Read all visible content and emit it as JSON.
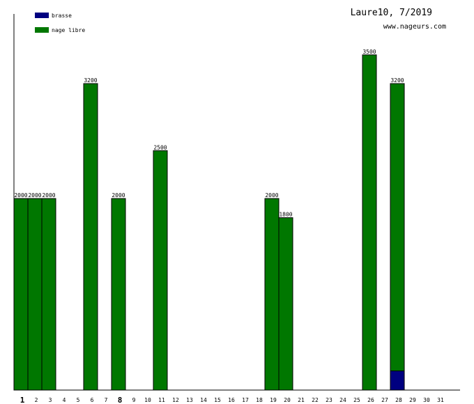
{
  "chart_data": {
    "type": "bar",
    "stacked": true,
    "title": "Laure10, 7/2019",
    "subtitle": "www.nageurs.com",
    "legend_placement": "top-left",
    "ylim": [
      0,
      4000
    ],
    "x_categories": [
      "1",
      "2",
      "3",
      "4",
      "5",
      "6",
      "7",
      "8",
      "9",
      "10",
      "11",
      "12",
      "13",
      "14",
      "15",
      "16",
      "17",
      "18",
      "19",
      "20",
      "21",
      "22",
      "23",
      "24",
      "25",
      "26",
      "27",
      "28",
      "29",
      "30",
      "31"
    ],
    "highlight_ticks": [
      "1",
      "8"
    ],
    "series": [
      {
        "name": "brasse",
        "color": "#000080",
        "values": [
          0,
          0,
          0,
          0,
          0,
          0,
          0,
          0,
          0,
          0,
          0,
          0,
          0,
          0,
          0,
          0,
          0,
          0,
          0,
          0,
          0,
          0,
          0,
          0,
          0,
          0,
          0,
          200,
          0,
          0,
          0
        ]
      },
      {
        "name": "nage libre",
        "color": "#007700",
        "values": [
          2000,
          2000,
          2000,
          0,
          0,
          3200,
          0,
          2000,
          0,
          0,
          2500,
          0,
          0,
          0,
          0,
          0,
          0,
          0,
          2000,
          1800,
          0,
          0,
          0,
          0,
          0,
          3500,
          0,
          3000,
          0,
          0,
          0
        ]
      }
    ],
    "totals": [
      {
        "day": "1",
        "label": "2000"
      },
      {
        "day": "2",
        "label": "2000"
      },
      {
        "day": "3",
        "label": "2000"
      },
      {
        "day": "6",
        "label": "3200"
      },
      {
        "day": "8",
        "label": "2000"
      },
      {
        "day": "11",
        "label": "2500"
      },
      {
        "day": "19",
        "label": "2000"
      },
      {
        "day": "20",
        "label": "1800"
      },
      {
        "day": "26",
        "label": "3500"
      },
      {
        "day": "28",
        "label": "3200"
      }
    ]
  }
}
